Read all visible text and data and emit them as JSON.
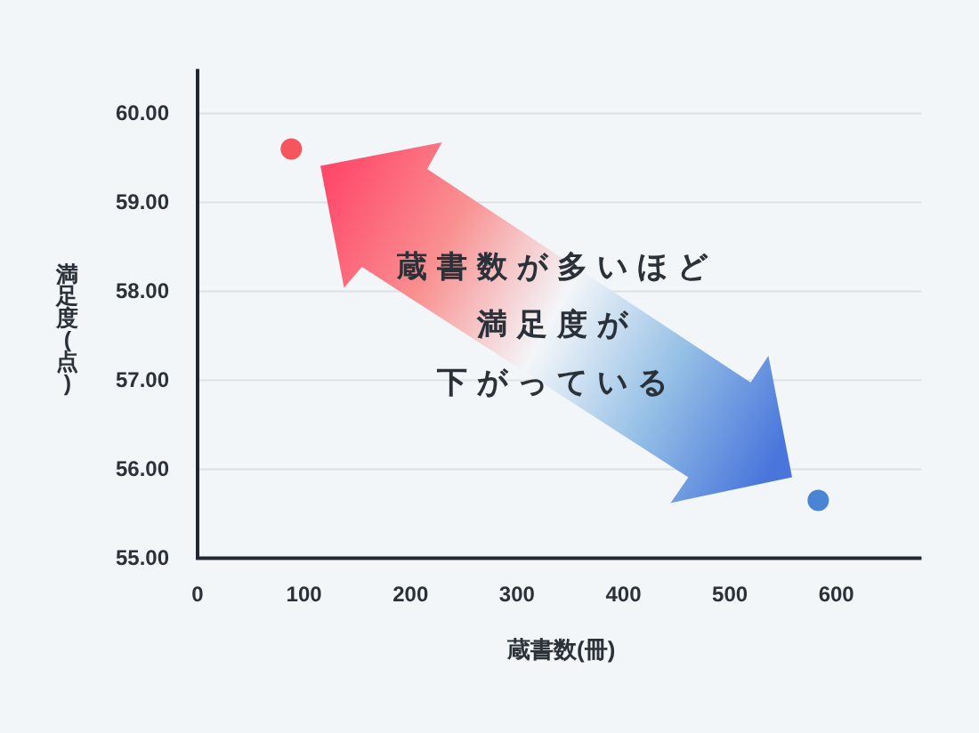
{
  "chart_data": {
    "type": "scatter",
    "xlabel": "蔵書数(冊)",
    "ylabel": "満足度(点)",
    "x": [
      88,
      583
    ],
    "values": [
      59.6,
      55.65
    ],
    "colors": [
      "#f5565e",
      "#4a84d4"
    ],
    "xlim": [
      0,
      680
    ],
    "ylim": [
      55,
      60.5
    ],
    "xticks": [
      0,
      100,
      200,
      300,
      400,
      500,
      600
    ],
    "yticks": [
      {
        "value": 55,
        "label": "55.00"
      },
      {
        "value": 56,
        "label": "56.00"
      },
      {
        "value": 57,
        "label": "57.00"
      },
      {
        "value": 58,
        "label": "58.00"
      },
      {
        "value": 59,
        "label": "59.00"
      },
      {
        "value": 60,
        "label": "60.00"
      }
    ],
    "grid": "y",
    "marker": "circle",
    "annotations": [
      "蔵書数が多いほど",
      "満足度が",
      "下がっている"
    ]
  }
}
